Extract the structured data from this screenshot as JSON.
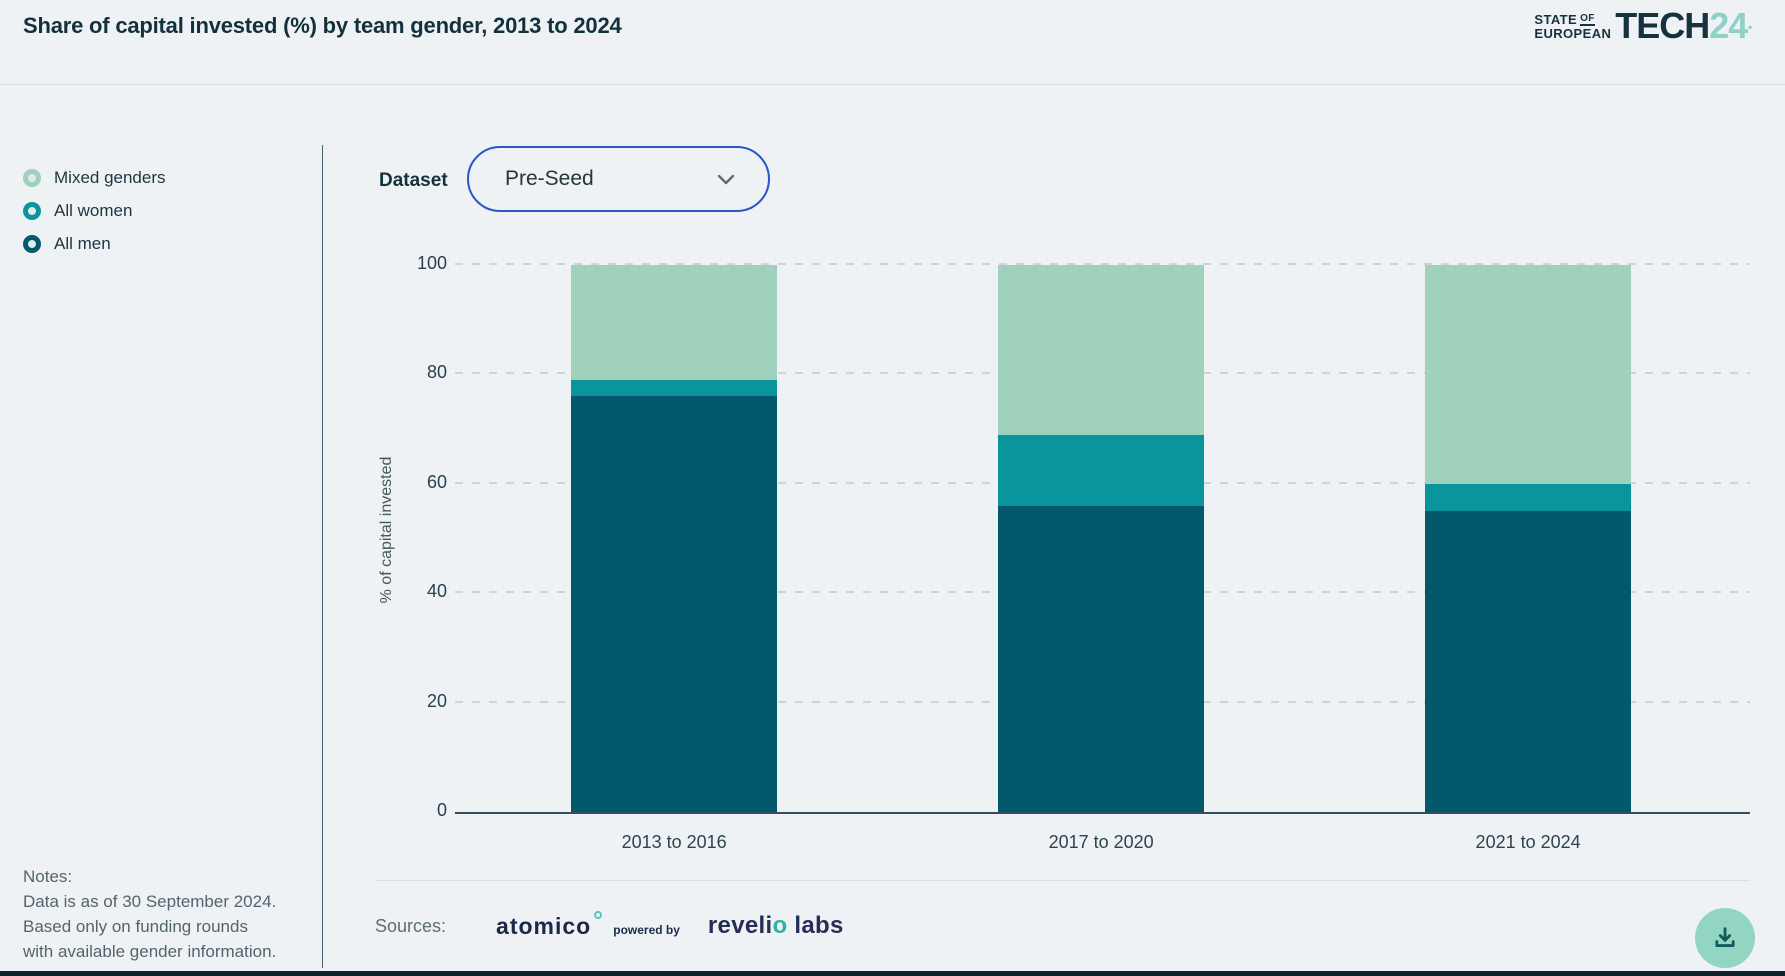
{
  "header": {
    "title": "Share of capital invested (%) by team gender, 2013 to 2024",
    "logo": {
      "state": "STATE",
      "of": "OF",
      "european": "EUROPEAN",
      "tech": "TECH",
      "year": "24",
      "dot": "·"
    }
  },
  "legend": {
    "items": [
      {
        "label": "Mixed genders",
        "color": "#9fd1bd"
      },
      {
        "label": "All women",
        "color": "#0a949b"
      },
      {
        "label": "All men",
        "color": "#04586c"
      }
    ]
  },
  "controls": {
    "dataset_label": "Dataset",
    "dataset_value": "Pre-Seed"
  },
  "chart_data": {
    "type": "bar",
    "stacked": true,
    "title": "Share of capital invested (%) by team gender, 2013 to 2024",
    "categories": [
      "2013 to 2016",
      "2017 to 2020",
      "2021 to 2024"
    ],
    "series": [
      {
        "name": "All men",
        "color": "#04586c",
        "values": [
          76,
          56,
          55
        ]
      },
      {
        "name": "All women",
        "color": "#0a949b",
        "values": [
          3,
          13,
          5
        ]
      },
      {
        "name": "Mixed genders",
        "color": "#9fd1bd",
        "values": [
          21,
          31,
          40
        ]
      }
    ],
    "xlabel": "",
    "ylabel": "% of capital invested",
    "ylim": [
      0,
      100
    ],
    "yticks": [
      0,
      20,
      40,
      60,
      80,
      100
    ],
    "grid": "horizontal-dashed",
    "legend_position": "left"
  },
  "notes": {
    "title": "Notes:",
    "lines": [
      "Data is as of 30 September 2024.",
      "Based only on funding rounds",
      "with available gender information."
    ]
  },
  "sources": {
    "label": "Sources:",
    "atomico": "atomico",
    "powered_by": "powered by",
    "revelio": "revelio labs"
  },
  "colors": {
    "accent_mint": "#8ed2c6",
    "dropdown_border": "#2b55c8",
    "download_bg": "#92d5c2",
    "download_icon": "#115a60",
    "title_text": "#13303d",
    "background": "#eff2f4"
  }
}
